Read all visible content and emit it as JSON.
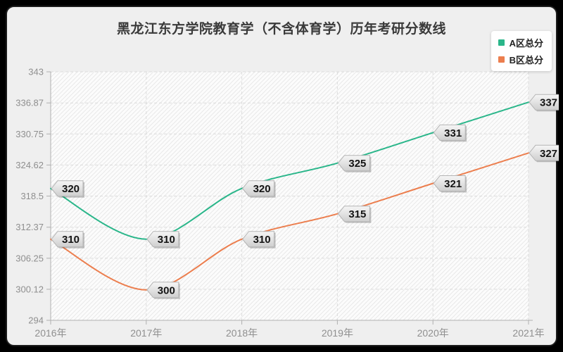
{
  "chart_data": {
    "type": "line",
    "title": "黑龙江东方学院教育学（不含体育学）历年考研分数线",
    "categories": [
      "2016年",
      "2017年",
      "2018年",
      "2019年",
      "2020年",
      "2021年"
    ],
    "series": [
      {
        "name": "A区总分",
        "values": [
          320,
          310,
          320,
          325,
          331,
          337
        ],
        "color": "#2ab68a"
      },
      {
        "name": "B区总分",
        "values": [
          310,
          300,
          310,
          315,
          321,
          327
        ],
        "color": "#ec7e4e"
      }
    ],
    "xlabel": "",
    "ylabel": "",
    "ylim": [
      294,
      343
    ],
    "y_ticks": [
      "294",
      "300.12",
      "306.25",
      "312.37",
      "318.5",
      "324.62",
      "330.75",
      "336.87",
      "343"
    ],
    "smooth": true,
    "grid": "dashed horizontal and vertical",
    "legend_position": "top-right",
    "point_labels_shown": true
  },
  "colors": {
    "page_bg": "#000000",
    "card_bg": "#efefef",
    "plot_bg": "#fcfcfc",
    "hatch_line": "#e9e9e9",
    "grid": "#dcdcdc",
    "axis": "#b0b0b0",
    "tick_label": "#8f8f8f",
    "title_text": "#3a3a3a",
    "tag_border": "#b4b4b4",
    "tag_text": "#141414",
    "series_a": "#2ab68a",
    "series_b": "#ec7e4e"
  }
}
